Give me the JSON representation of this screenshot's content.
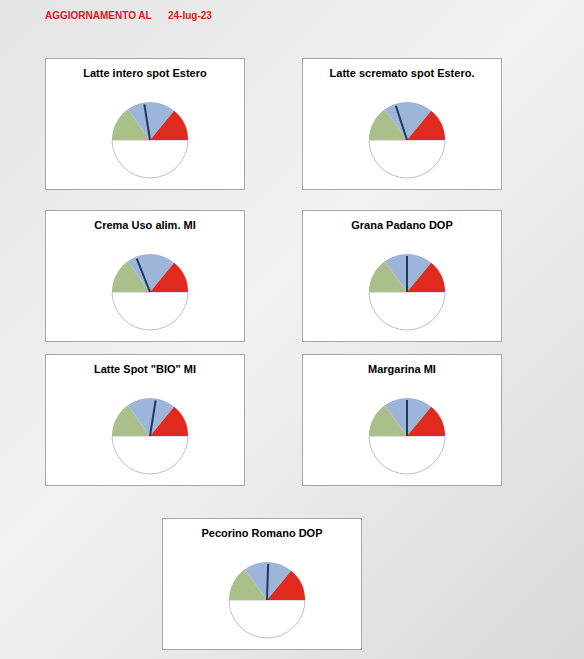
{
  "header": {
    "label": "AGGIORNAMENTO AL",
    "date": "24-lug-23"
  },
  "chart_data": [
    {
      "type": "gauge",
      "title": "Latte intero spot Estero",
      "value": 45,
      "ylim": [
        0,
        100
      ],
      "color": "#1f3a5f",
      "bands": [
        {
          "from": 0,
          "to": 30,
          "color": "#a9c08b"
        },
        {
          "from": 30,
          "to": 72,
          "color": "#9db5d8"
        },
        {
          "from": 72,
          "to": 100,
          "color": "#e02a20"
        }
      ]
    },
    {
      "type": "gauge",
      "title": "Latte scremato spot Estero.",
      "value": 40,
      "ylim": [
        0,
        100
      ],
      "color": "#1f3a5f",
      "bands": [
        {
          "from": 0,
          "to": 30,
          "color": "#a9c08b"
        },
        {
          "from": 30,
          "to": 72,
          "color": "#9db5d8"
        },
        {
          "from": 72,
          "to": 100,
          "color": "#e02a20"
        }
      ]
    },
    {
      "type": "gauge",
      "title": "Crema Uso alim. MI",
      "value": 38,
      "ylim": [
        0,
        100
      ],
      "color": "#1f3a5f",
      "bands": [
        {
          "from": 0,
          "to": 30,
          "color": "#a9c08b"
        },
        {
          "from": 30,
          "to": 72,
          "color": "#9db5d8"
        },
        {
          "from": 72,
          "to": 100,
          "color": "#e02a20"
        }
      ]
    },
    {
      "type": "gauge",
      "title": "Grana Padano DOP",
      "value": 50,
      "ylim": [
        0,
        100
      ],
      "color": "#1f3a5f",
      "bands": [
        {
          "from": 0,
          "to": 30,
          "color": "#a9c08b"
        },
        {
          "from": 30,
          "to": 72,
          "color": "#9db5d8"
        },
        {
          "from": 72,
          "to": 100,
          "color": "#e02a20"
        }
      ]
    },
    {
      "type": "gauge",
      "title": "Latte Spot \"BIO\" MI",
      "value": 55,
      "ylim": [
        0,
        100
      ],
      "color": "#1f3a5f",
      "bands": [
        {
          "from": 0,
          "to": 30,
          "color": "#a9c08b"
        },
        {
          "from": 30,
          "to": 72,
          "color": "#9db5d8"
        },
        {
          "from": 72,
          "to": 100,
          "color": "#e02a20"
        }
      ]
    },
    {
      "type": "gauge",
      "title": "Margarina MI",
      "value": 50,
      "ylim": [
        0,
        100
      ],
      "color": "#1f3a5f",
      "bands": [
        {
          "from": 0,
          "to": 30,
          "color": "#a9c08b"
        },
        {
          "from": 30,
          "to": 72,
          "color": "#9db5d8"
        },
        {
          "from": 72,
          "to": 100,
          "color": "#e02a20"
        }
      ]
    },
    {
      "type": "gauge",
      "title": "Pecorino Romano DOP",
      "value": 51,
      "ylim": [
        0,
        100
      ],
      "color": "#1f3a5f",
      "bands": [
        {
          "from": 0,
          "to": 30,
          "color": "#a9c08b"
        },
        {
          "from": 30,
          "to": 72,
          "color": "#9db5d8"
        },
        {
          "from": 72,
          "to": 100,
          "color": "#e02a20"
        }
      ]
    }
  ]
}
